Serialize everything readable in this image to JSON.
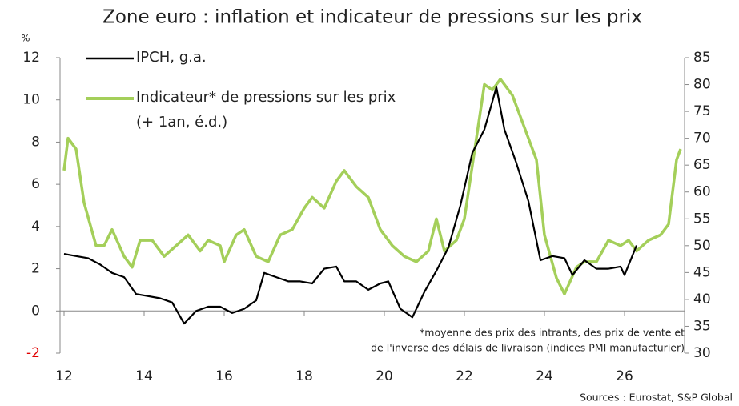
{
  "chart_data": {
    "type": "line",
    "title": "Zone euro : inflation et indicateur de pressions sur les prix",
    "y_unit": "%",
    "footnote": [
      "*moyenne des prix des intrants, des prix de vente et",
      "de l'inverse des délais de livraison (indices PMI manufacturier)"
    ],
    "source": "Sources : Eurostat, S&P Global",
    "legend_note": "(+ 1an, é.d.)",
    "xlim": [
      11.9,
      27.5
    ],
    "xticks": [
      12,
      14,
      16,
      18,
      20,
      22,
      24,
      26
    ],
    "ylim": [
      -2,
      12
    ],
    "yticks": [
      -2,
      0,
      2,
      4,
      6,
      8,
      10,
      12
    ],
    "y2lim": [
      30,
      85
    ],
    "y2ticks": [
      30,
      35,
      40,
      45,
      50,
      55,
      60,
      65,
      70,
      75,
      80,
      85
    ],
    "negative_tick_color": "#e00000",
    "series": [
      {
        "name": "IPCH, g.a.",
        "color": "#000000",
        "x": [
          12.0,
          12.3,
          12.6,
          12.9,
          13.2,
          13.5,
          13.8,
          14.1,
          14.4,
          14.7,
          15.0,
          15.3,
          15.6,
          15.9,
          16.2,
          16.5,
          16.8,
          17.0,
          17.3,
          17.6,
          17.9,
          18.2,
          18.5,
          18.8,
          19.0,
          19.3,
          19.6,
          19.9,
          20.1,
          20.4,
          20.7,
          21.0,
          21.3,
          21.6,
          21.9,
          22.2,
          22.5,
          22.8,
          23.0,
          23.3,
          23.6,
          23.9,
          24.2,
          24.5,
          24.7,
          25.0,
          25.3,
          25.6,
          25.9,
          26.0,
          26.3
        ],
        "values": [
          2.7,
          2.6,
          2.5,
          2.2,
          1.8,
          1.6,
          0.8,
          0.7,
          0.6,
          0.4,
          -0.6,
          0.0,
          0.2,
          0.2,
          -0.1,
          0.1,
          0.5,
          1.8,
          1.6,
          1.4,
          1.4,
          1.3,
          2.0,
          2.1,
          1.4,
          1.4,
          1.0,
          1.3,
          1.4,
          0.1,
          -0.3,
          0.9,
          1.9,
          3.0,
          5.0,
          7.5,
          8.6,
          10.6,
          8.6,
          7.0,
          5.2,
          2.4,
          2.6,
          2.5,
          1.7,
          2.4,
          2.0,
          2.0,
          2.1,
          1.7,
          3.1
        ]
      },
      {
        "name": "Indicateur* de pressions sur les prix",
        "color": "#a4cf5a",
        "axis": "y2",
        "x": [
          12.0,
          12.1,
          12.3,
          12.5,
          12.8,
          13.0,
          13.2,
          13.5,
          13.7,
          13.9,
          14.2,
          14.5,
          14.8,
          15.1,
          15.4,
          15.6,
          15.9,
          16.0,
          16.3,
          16.5,
          16.8,
          17.1,
          17.4,
          17.7,
          18.0,
          18.2,
          18.5,
          18.8,
          19.0,
          19.3,
          19.6,
          19.9,
          20.2,
          20.5,
          20.8,
          21.1,
          21.3,
          21.5,
          21.8,
          22.0,
          22.3,
          22.5,
          22.7,
          22.9,
          23.2,
          23.5,
          23.8,
          24.0,
          24.3,
          24.5,
          24.8,
          25.0,
          25.3,
          25.6,
          25.9,
          26.1,
          26.3,
          26.6,
          26.9,
          27.1,
          27.3,
          27.4
        ],
        "values": [
          64,
          70,
          68,
          58,
          50,
          50,
          53,
          48,
          46,
          51,
          51,
          48,
          50,
          52,
          49,
          51,
          50,
          47,
          52,
          53,
          48,
          47,
          52,
          53,
          57,
          59,
          57,
          62,
          64,
          61,
          59,
          53,
          50,
          48,
          47,
          49,
          55,
          49,
          51,
          55,
          70,
          80,
          79,
          81,
          78,
          72,
          66,
          52,
          44,
          41,
          46,
          47,
          47,
          51,
          50,
          51,
          49,
          51,
          52,
          54,
          66,
          68
        ]
      }
    ]
  }
}
